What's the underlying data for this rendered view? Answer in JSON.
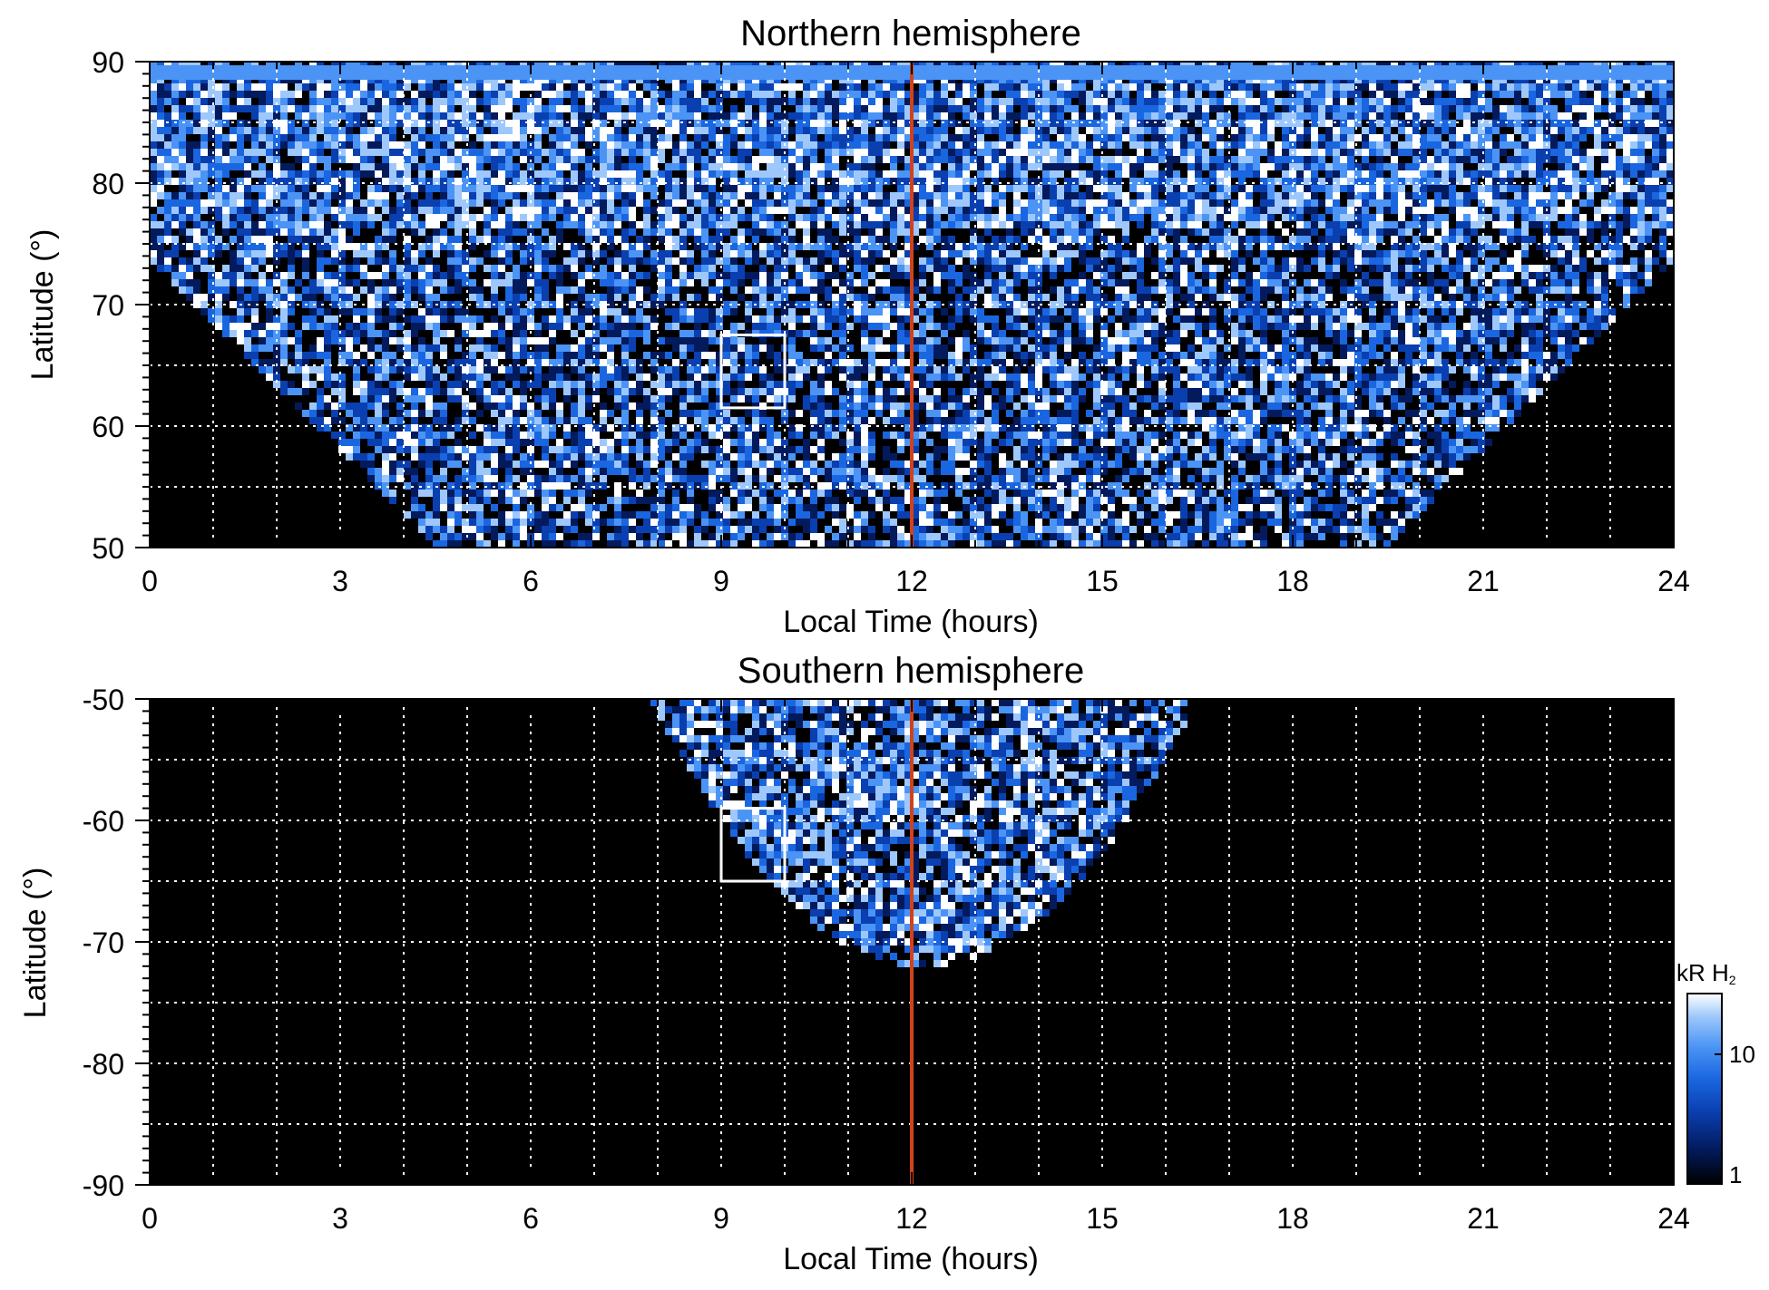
{
  "colors": {
    "background": "#000000",
    "grid": "#ffffff",
    "noon_line": "#d0421b",
    "box": "#ffffff",
    "colormap": [
      "#000000",
      "#031a5c",
      "#0a3fb0",
      "#1a66e0",
      "#4b94f5",
      "#9ec8fb",
      "#ffffff"
    ]
  },
  "chart_data": [
    {
      "type": "heatmap",
      "title": "Northern hemisphere",
      "xlabel": "Local Time (hours)",
      "ylabel": "Latitude (°)",
      "xlim": [
        0,
        24
      ],
      "ylim": [
        50,
        90
      ],
      "xticks": [
        "0",
        "3",
        "6",
        "9",
        "12",
        "15",
        "18",
        "21",
        "24"
      ],
      "yticks": [
        "50",
        "60",
        "70",
        "80",
        "90"
      ],
      "grid": true,
      "vertical_line_x": 12,
      "box": {
        "x": [
          9,
          10
        ],
        "y": [
          61.5,
          67.5
        ]
      },
      "coverage": "latitude boundary ~73 near 0/24 h, reaching 50 between ~4.9 and ~19.4 h"
    },
    {
      "type": "heatmap",
      "title": "Southern hemisphere",
      "xlabel": "Local Time (hours)",
      "ylabel": "Latitude (°)",
      "xlim": [
        0,
        24
      ],
      "ylim": [
        -90,
        -50
      ],
      "xticks": [
        "0",
        "3",
        "6",
        "9",
        "12",
        "15",
        "18",
        "21",
        "24"
      ],
      "yticks": [
        "-50",
        "-60",
        "-70",
        "-80",
        "-90"
      ],
      "grid": true,
      "vertical_line_x": 12,
      "box": {
        "x": [
          9,
          10
        ],
        "y": [
          -65,
          -59
        ]
      },
      "coverage": "from ~8 to ~16.5 h at -50, reaching about -72 near 12 h"
    }
  ],
  "colorbar": {
    "label": "kR H",
    "label_subscript": "2",
    "scale": "log",
    "ticks": [
      "1",
      "10"
    ]
  }
}
